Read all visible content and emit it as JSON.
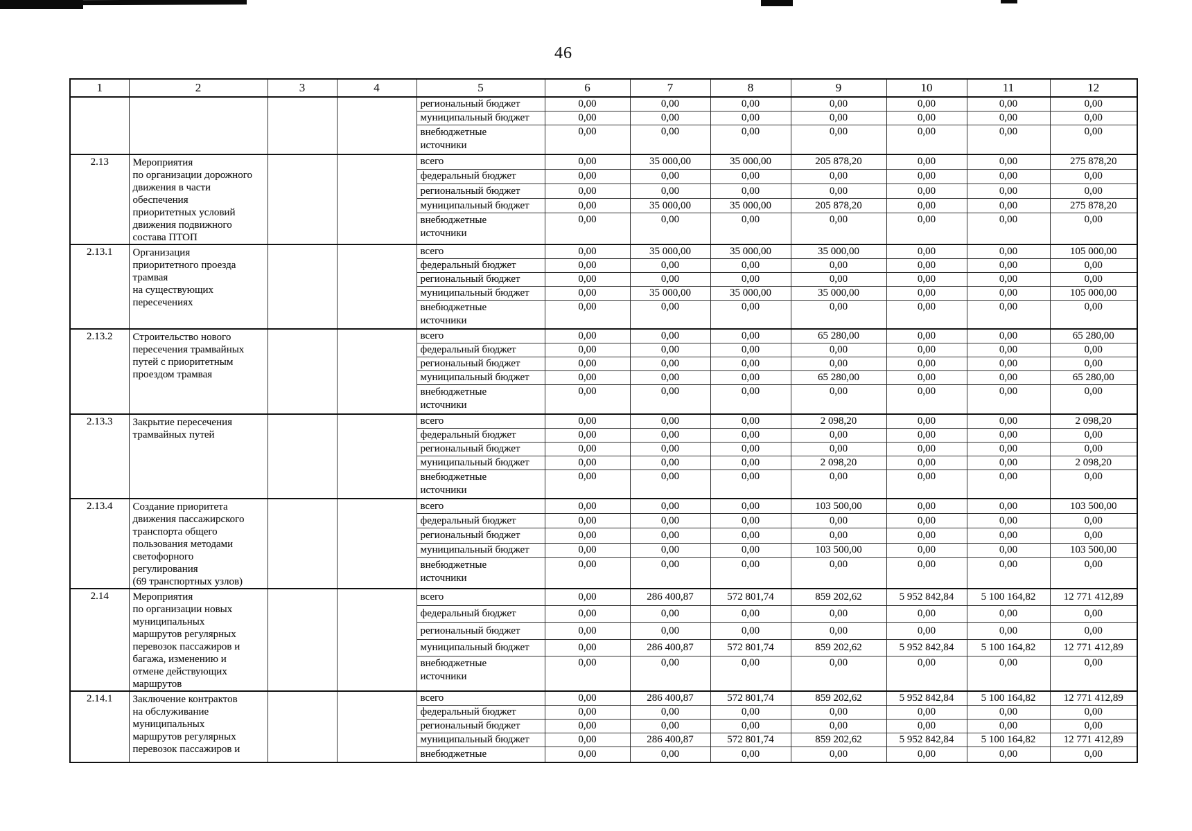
{
  "page_number": "46",
  "table": {
    "header_columns": [
      "1",
      "2",
      "3",
      "4",
      "5",
      "6",
      "7",
      "8",
      "9",
      "10",
      "11",
      "12"
    ],
    "blocks": [
      {
        "code": "",
        "description": "",
        "rows": [
          {
            "label": "региональный бюджет",
            "two_line": false,
            "values": [
              "0,00",
              "0,00",
              "0,00",
              "0,00",
              "0,00",
              "0,00",
              "0,00"
            ]
          },
          {
            "label": "муниципальный бюджет",
            "two_line": false,
            "values": [
              "0,00",
              "0,00",
              "0,00",
              "0,00",
              "0,00",
              "0,00",
              "0,00"
            ]
          },
          {
            "label": "внебюджетные\nисточники",
            "two_line": true,
            "values": [
              "0,00",
              "0,00",
              "0,00",
              "0,00",
              "0,00",
              "0,00",
              "0,00"
            ]
          }
        ]
      },
      {
        "code": "2.13",
        "description": "Мероприятия\nпо организации дорожного\nдвижения в части\nобеспечения\nприоритетных условий\nдвижения подвижного\nсостава ПТОП",
        "rows": [
          {
            "label": "всего",
            "two_line": false,
            "values": [
              "0,00",
              "35 000,00",
              "35 000,00",
              "205 878,20",
              "0,00",
              "0,00",
              "275 878,20"
            ]
          },
          {
            "label": "федеральный бюджет",
            "two_line": false,
            "values": [
              "0,00",
              "0,00",
              "0,00",
              "0,00",
              "0,00",
              "0,00",
              "0,00"
            ]
          },
          {
            "label": "региональный бюджет",
            "two_line": false,
            "values": [
              "0,00",
              "0,00",
              "0,00",
              "0,00",
              "0,00",
              "0,00",
              "0,00"
            ]
          },
          {
            "label": "муниципальный бюджет",
            "two_line": false,
            "values": [
              "0,00",
              "35 000,00",
              "35 000,00",
              "205 878,20",
              "0,00",
              "0,00",
              "275 878,20"
            ]
          },
          {
            "label": "внебюджетные\nисточники",
            "two_line": true,
            "values": [
              "0,00",
              "0,00",
              "0,00",
              "0,00",
              "0,00",
              "0,00",
              "0,00"
            ]
          }
        ]
      },
      {
        "code": "2.13.1",
        "description": "Организация\nприоритетного проезда\nтрамвая\nна существующих\nпересечениях",
        "rows": [
          {
            "label": "всего",
            "two_line": false,
            "values": [
              "0,00",
              "35 000,00",
              "35 000,00",
              "35 000,00",
              "0,00",
              "0,00",
              "105 000,00"
            ]
          },
          {
            "label": "федеральный бюджет",
            "two_line": false,
            "values": [
              "0,00",
              "0,00",
              "0,00",
              "0,00",
              "0,00",
              "0,00",
              "0,00"
            ]
          },
          {
            "label": "региональный бюджет",
            "two_line": false,
            "values": [
              "0,00",
              "0,00",
              "0,00",
              "0,00",
              "0,00",
              "0,00",
              "0,00"
            ]
          },
          {
            "label": "муниципальный бюджет",
            "two_line": false,
            "values": [
              "0,00",
              "35 000,00",
              "35 000,00",
              "35 000,00",
              "0,00",
              "0,00",
              "105 000,00"
            ]
          },
          {
            "label": "внебюджетные\nисточники",
            "two_line": true,
            "values": [
              "0,00",
              "0,00",
              "0,00",
              "0,00",
              "0,00",
              "0,00",
              "0,00"
            ]
          }
        ]
      },
      {
        "code": "2.13.2",
        "description": "Строительство нового\nпересечения трамвайных\nпутей с приоритетным\nпроездом трамвая",
        "rows": [
          {
            "label": "всего",
            "two_line": false,
            "values": [
              "0,00",
              "0,00",
              "0,00",
              "65 280,00",
              "0,00",
              "0,00",
              "65 280,00"
            ]
          },
          {
            "label": "федеральный бюджет",
            "two_line": false,
            "values": [
              "0,00",
              "0,00",
              "0,00",
              "0,00",
              "0,00",
              "0,00",
              "0,00"
            ]
          },
          {
            "label": "региональный бюджет",
            "two_line": false,
            "values": [
              "0,00",
              "0,00",
              "0,00",
              "0,00",
              "0,00",
              "0,00",
              "0,00"
            ]
          },
          {
            "label": "муниципальный бюджет",
            "two_line": false,
            "values": [
              "0,00",
              "0,00",
              "0,00",
              "65 280,00",
              "0,00",
              "0,00",
              "65 280,00"
            ]
          },
          {
            "label": "внебюджетные\nисточники",
            "two_line": true,
            "values": [
              "0,00",
              "0,00",
              "0,00",
              "0,00",
              "0,00",
              "0,00",
              "0,00"
            ]
          }
        ]
      },
      {
        "code": "2.13.3",
        "description": "Закрытие пересечения\nтрамвайных путей",
        "rows": [
          {
            "label": "всего",
            "two_line": false,
            "values": [
              "0,00",
              "0,00",
              "0,00",
              "2 098,20",
              "0,00",
              "0,00",
              "2 098,20"
            ]
          },
          {
            "label": "федеральный бюджет",
            "two_line": false,
            "values": [
              "0,00",
              "0,00",
              "0,00",
              "0,00",
              "0,00",
              "0,00",
              "0,00"
            ]
          },
          {
            "label": "региональный бюджет",
            "two_line": false,
            "values": [
              "0,00",
              "0,00",
              "0,00",
              "0,00",
              "0,00",
              "0,00",
              "0,00"
            ]
          },
          {
            "label": "муниципальный бюджет",
            "two_line": false,
            "values": [
              "0,00",
              "0,00",
              "0,00",
              "2 098,20",
              "0,00",
              "0,00",
              "2 098,20"
            ]
          },
          {
            "label": "внебюджетные\nисточники",
            "two_line": true,
            "values": [
              "0,00",
              "0,00",
              "0,00",
              "0,00",
              "0,00",
              "0,00",
              "0,00"
            ]
          }
        ]
      },
      {
        "code": "2.13.4",
        "description": "Создание приоритета\nдвижения пассажирского\nтранспорта общего\nпользования методами\nсветофорного\nрегулирования\n(69 транспортных узлов)",
        "rows": [
          {
            "label": "всего",
            "two_line": false,
            "values": [
              "0,00",
              "0,00",
              "0,00",
              "103 500,00",
              "0,00",
              "0,00",
              "103 500,00"
            ]
          },
          {
            "label": "федеральный бюджет",
            "two_line": false,
            "values": [
              "0,00",
              "0,00",
              "0,00",
              "0,00",
              "0,00",
              "0,00",
              "0,00"
            ]
          },
          {
            "label": "региональный бюджет",
            "two_line": false,
            "values": [
              "0,00",
              "0,00",
              "0,00",
              "0,00",
              "0,00",
              "0,00",
              "0,00"
            ]
          },
          {
            "label": "муниципальный бюджет",
            "two_line": false,
            "values": [
              "0,00",
              "0,00",
              "0,00",
              "103 500,00",
              "0,00",
              "0,00",
              "103 500,00"
            ]
          },
          {
            "label": "внебюджетные\nисточники",
            "two_line": true,
            "values": [
              "0,00",
              "0,00",
              "0,00",
              "0,00",
              "0,00",
              "0,00",
              "0,00"
            ]
          }
        ]
      },
      {
        "code": "2.14",
        "description": "Мероприятия\nпо организации новых\nмуниципальных\nмаршрутов регулярных\nперевозок пассажиров и\nбагажа, изменению и\nотмене действующих\nмаршрутов",
        "rows": [
          {
            "label": "всего",
            "two_line": false,
            "values": [
              "0,00",
              "286 400,87",
              "572 801,74",
              "859 202,62",
              "5 952 842,84",
              "5 100 164,82",
              "12 771 412,89"
            ]
          },
          {
            "label": "федеральный бюджет",
            "two_line": false,
            "values": [
              "0,00",
              "0,00",
              "0,00",
              "0,00",
              "0,00",
              "0,00",
              "0,00"
            ]
          },
          {
            "label": "региональный бюджет",
            "two_line": false,
            "values": [
              "0,00",
              "0,00",
              "0,00",
              "0,00",
              "0,00",
              "0,00",
              "0,00"
            ]
          },
          {
            "label": "муниципальный бюджет",
            "two_line": false,
            "values": [
              "0,00",
              "286 400,87",
              "572 801,74",
              "859 202,62",
              "5 952 842,84",
              "5 100 164,82",
              "12 771 412,89"
            ]
          },
          {
            "label": "внебюджетные\nисточники",
            "two_line": true,
            "values": [
              "0,00",
              "0,00",
              "0,00",
              "0,00",
              "0,00",
              "0,00",
              "0,00"
            ]
          }
        ]
      },
      {
        "code": "2.14.1",
        "description": "Заключение контрактов\nна обслуживание\nмуниципальных\nмаршрутов регулярных\nперевозок пассажиров и",
        "rows": [
          {
            "label": "всего",
            "two_line": false,
            "values": [
              "0,00",
              "286 400,87",
              "572 801,74",
              "859 202,62",
              "5 952 842,84",
              "5 100 164,82",
              "12 771 412,89"
            ]
          },
          {
            "label": "федеральный бюджет",
            "two_line": false,
            "values": [
              "0,00",
              "0,00",
              "0,00",
              "0,00",
              "0,00",
              "0,00",
              "0,00"
            ]
          },
          {
            "label": "региональный бюджет",
            "two_line": false,
            "values": [
              "0,00",
              "0,00",
              "0,00",
              "0,00",
              "0,00",
              "0,00",
              "0,00"
            ]
          },
          {
            "label": "муниципальный бюджет",
            "two_line": false,
            "values": [
              "0,00",
              "286 400,87",
              "572 801,74",
              "859 202,62",
              "5 952 842,84",
              "5 100 164,82",
              "12 771 412,89"
            ]
          },
          {
            "label": "внебюджетные",
            "two_line": false,
            "cut": true,
            "values": [
              "0,00",
              "0,00",
              "0,00",
              "0,00",
              "0,00",
              "0,00",
              "0,00"
            ]
          }
        ]
      }
    ]
  }
}
